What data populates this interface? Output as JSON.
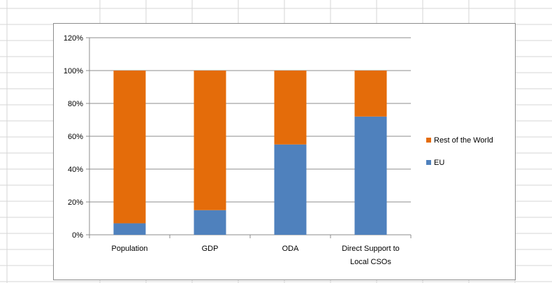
{
  "colors": {
    "eu": "#4f81bd",
    "rest_of_world": "#e46c0a",
    "gridline": "#8c8c8c",
    "sheet_grid": "#d6d6d6"
  },
  "chart_data": {
    "type": "bar",
    "stacked": true,
    "categories": [
      [
        "Population"
      ],
      [
        "GDP"
      ],
      [
        "ODA"
      ],
      [
        "Direct Support to",
        "Local CSOs"
      ]
    ],
    "series": [
      {
        "name": "EU",
        "values": [
          7,
          15,
          55,
          72
        ]
      },
      {
        "name": "Rest of the World",
        "values": [
          93,
          85,
          45,
          28
        ]
      }
    ],
    "ylim": [
      0,
      120
    ],
    "ytick_step": 20,
    "ytick_suffix": "%",
    "grid": true,
    "legend_position": "right",
    "legend_order": [
      "Rest of the World",
      "EU"
    ]
  }
}
